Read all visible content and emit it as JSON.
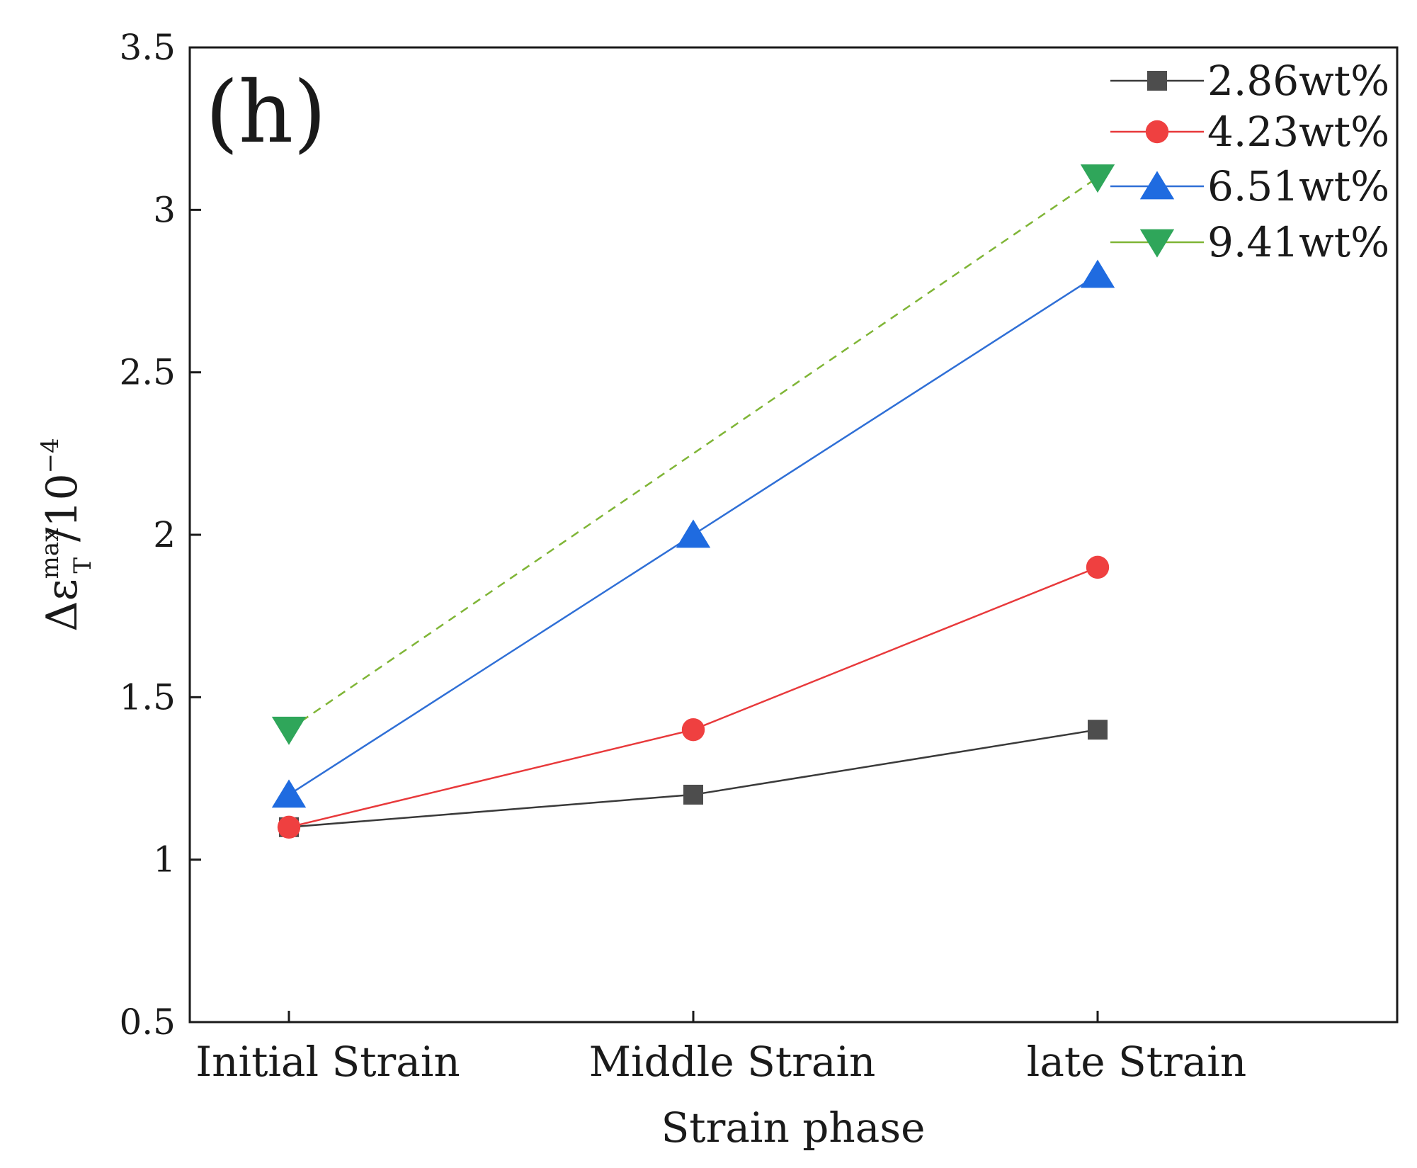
{
  "chart_data": {
    "type": "line",
    "panel_label": "(h)",
    "title": "",
    "xlabel": "Strain phase",
    "ylabel": {
      "base": "Δε",
      "superscript": "max",
      "subscript": "T",
      "unit": "/10",
      "unit_exponent": "−4"
    },
    "categories": [
      "Initial Strain",
      "Middle Strain",
      "late Strain"
    ],
    "ylim": [
      0.5,
      3.5
    ],
    "yticks": [
      "0.5",
      "1",
      "1.5",
      "2",
      "2.5",
      "3",
      "3.5"
    ],
    "legend_position": "top-right",
    "grid": false,
    "series": [
      {
        "name": "2.86wt%",
        "values": [
          1.1,
          1.2,
          1.4
        ],
        "color": "#3a3a3a",
        "point_color": "#4d4d4d",
        "marker": "square",
        "dashed": false
      },
      {
        "name": "4.23wt%",
        "values": [
          1.1,
          1.4,
          1.9
        ],
        "color": "#e8393b",
        "point_color": "#ef4040",
        "marker": "circle",
        "dashed": false
      },
      {
        "name": "6.51wt%",
        "values": [
          1.2,
          2.0,
          2.8
        ],
        "color": "#2f6fd6",
        "point_color": "#1f6be0",
        "marker": "triangle-up",
        "dashed": false
      },
      {
        "name": "9.41wt%",
        "values": [
          1.4,
          null,
          3.1
        ],
        "color": "#7fb536",
        "point_color": "#2fa65a",
        "marker": "triangle-down",
        "dashed": true
      }
    ]
  }
}
